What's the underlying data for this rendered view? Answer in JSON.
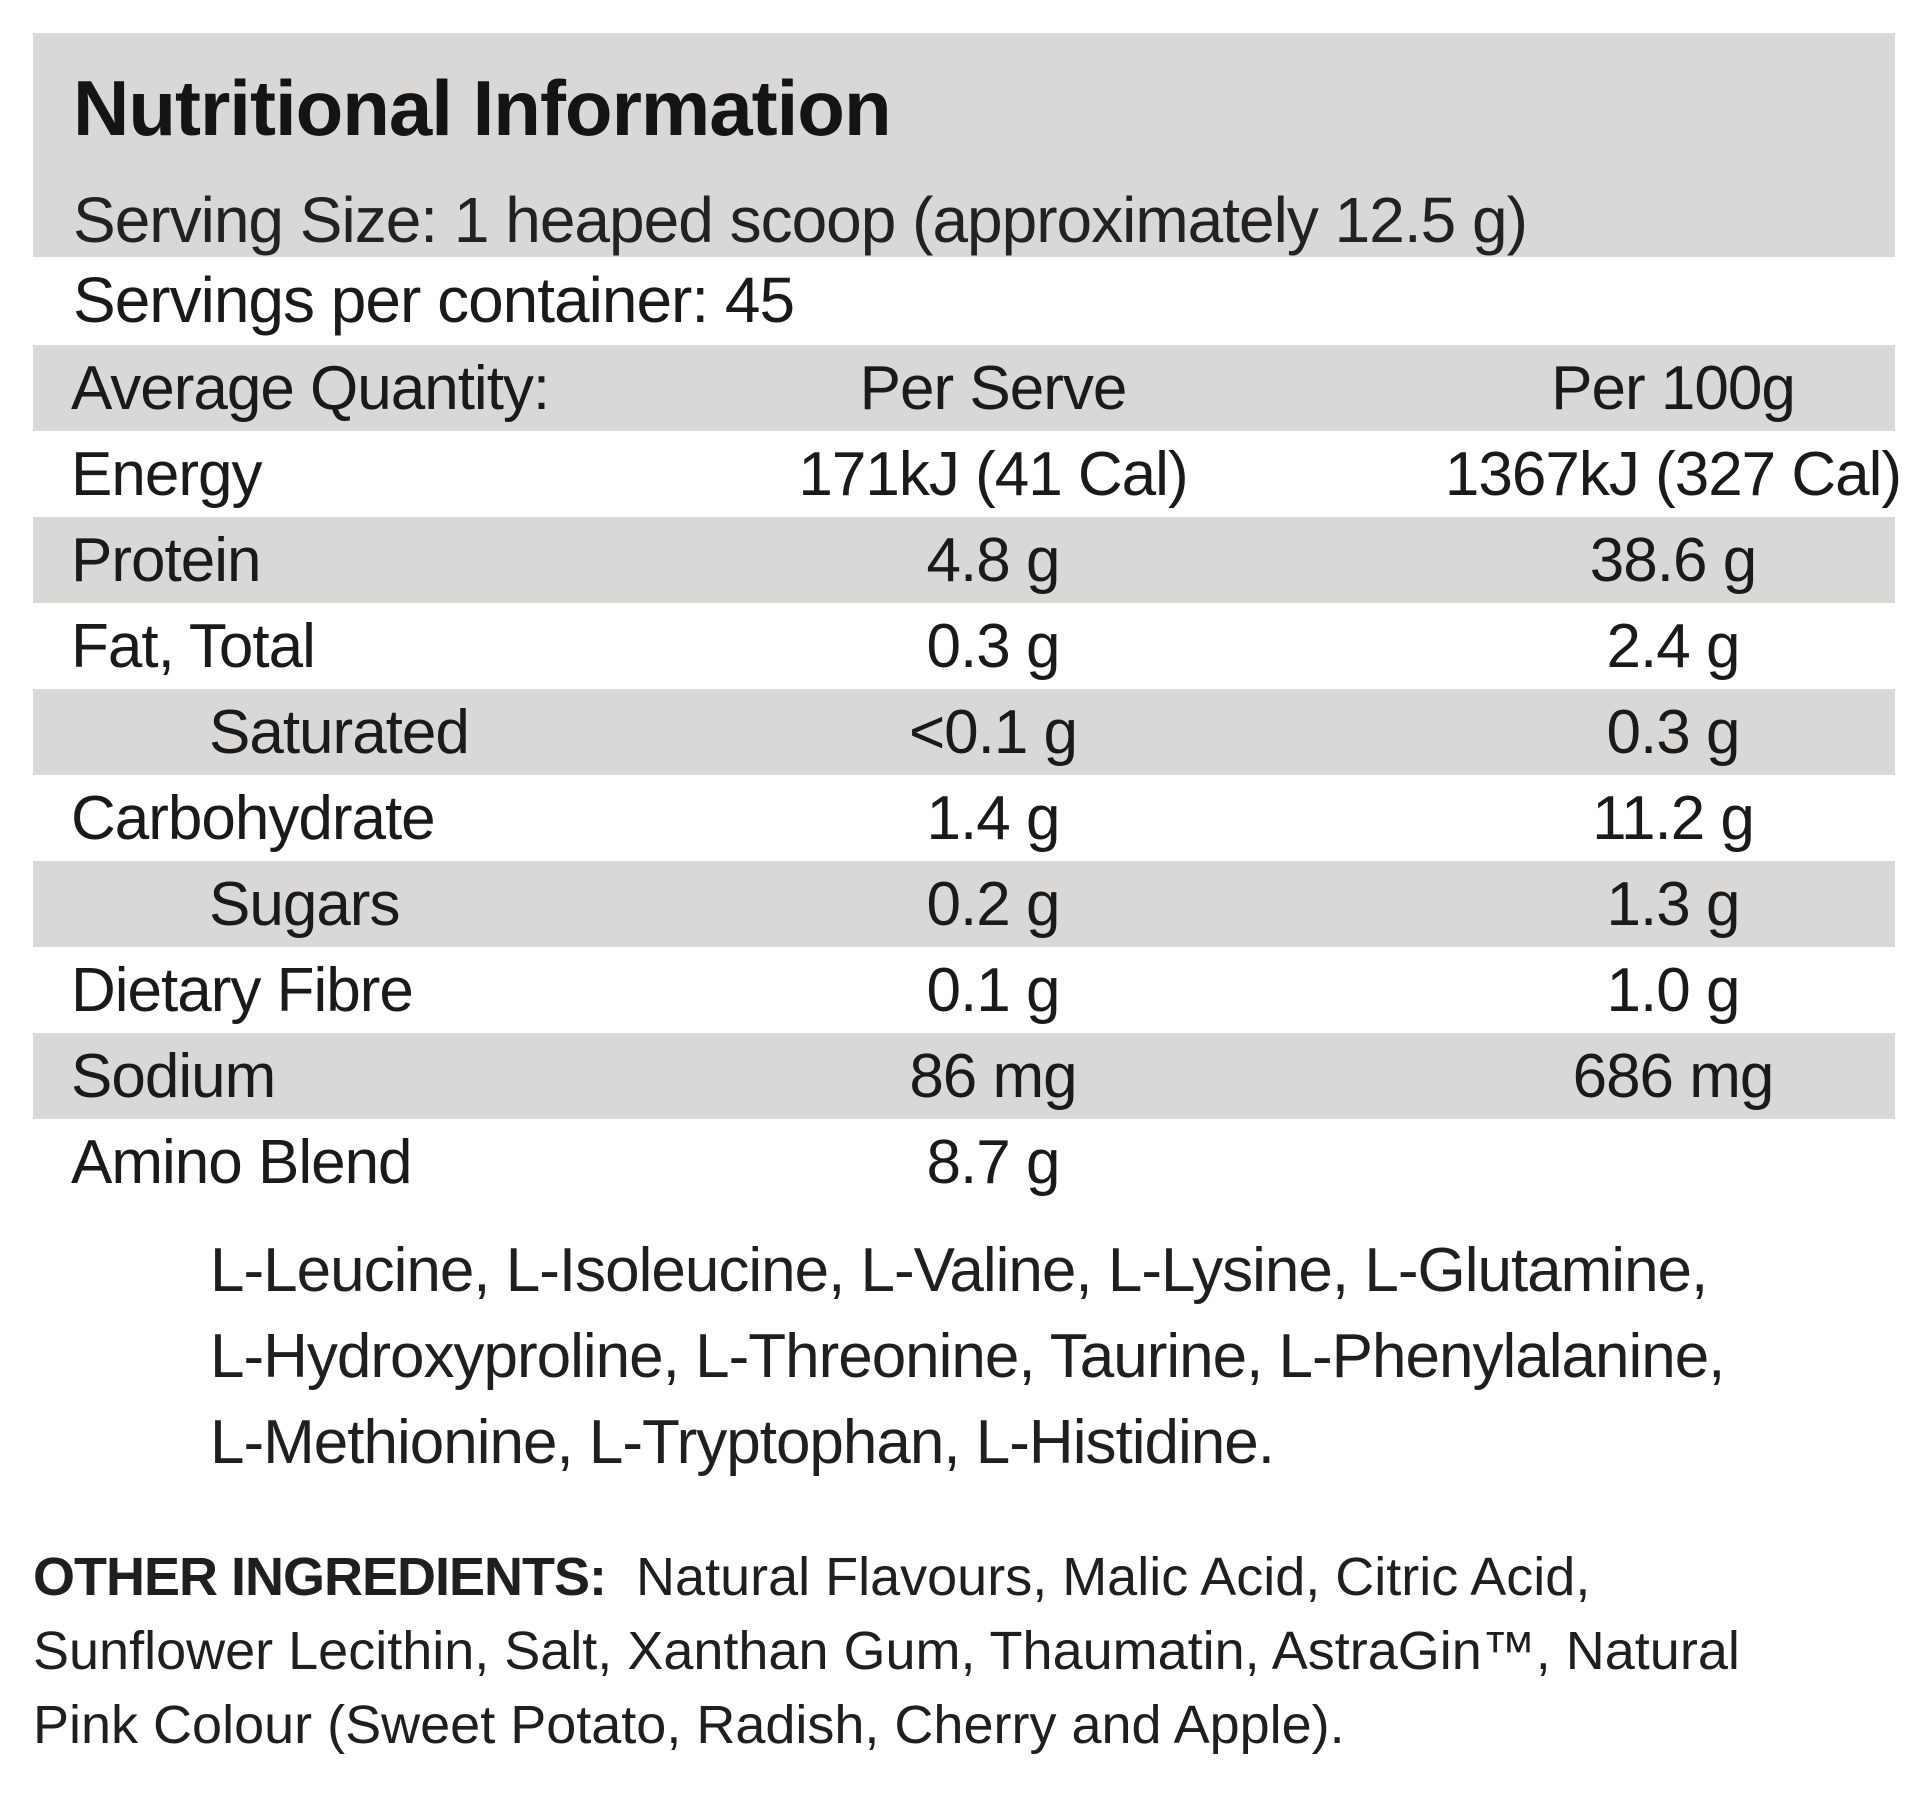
{
  "title": "Nutritional Information",
  "serving_size": "Serving Size: 1 heaped scoop (approximately 12.5 g)",
  "servings_per_container": "Servings per container: 45",
  "table": {
    "header": {
      "label": "Average Quantity:",
      "per_serve": "Per Serve",
      "per_100g": "Per 100g"
    },
    "rows": [
      {
        "label": "Energy",
        "per_serve": "171kJ (41 Cal)",
        "per_100g": "1367kJ (327 Cal)"
      },
      {
        "label": "Protein",
        "per_serve": "4.8 g",
        "per_100g": "38.6 g"
      },
      {
        "label": "Fat, Total",
        "per_serve": "0.3 g",
        "per_100g": "2.4 g"
      },
      {
        "label": "Saturated",
        "per_serve": "<0.1 g",
        "per_100g": "0.3 g"
      },
      {
        "label": "Carbohydrate",
        "per_serve": "1.4 g",
        "per_100g": "11.2 g"
      },
      {
        "label": "Sugars",
        "per_serve": "0.2 g",
        "per_100g": "1.3 g"
      },
      {
        "label": "Dietary Fibre",
        "per_serve": "0.1 g",
        "per_100g": "1.0 g"
      },
      {
        "label": "Sodium",
        "per_serve": "86 mg",
        "per_100g": "686 mg"
      },
      {
        "label": "Amino Blend",
        "per_serve": "8.7 g",
        "per_100g": ""
      }
    ]
  },
  "amino_blend_lines": [
    "L-Leucine, L-Isoleucine, L-Valine, L-Lysine, L-Glutamine,",
    "L-Hydroxyproline, L-Threonine, Taurine, L-Phenylalanine,",
    "L-Methionine, L-Tryptophan, L-Histidine."
  ],
  "other_ingredients": {
    "label": "OTHER INGREDIENTS:",
    "line1": "Natural Flavours, Malic Acid, Citric Acid,",
    "line2": "Sunflower Lecithin, Salt, Xanthan Gum, Thaumatin, AstraGin™, Natural",
    "line3": "Pink Colour (Sweet Potato, Radish, Cherry and Apple)."
  },
  "colors": {
    "band": "#d9d8d7",
    "text": "#1a1a1a",
    "background": "#ffffff"
  }
}
